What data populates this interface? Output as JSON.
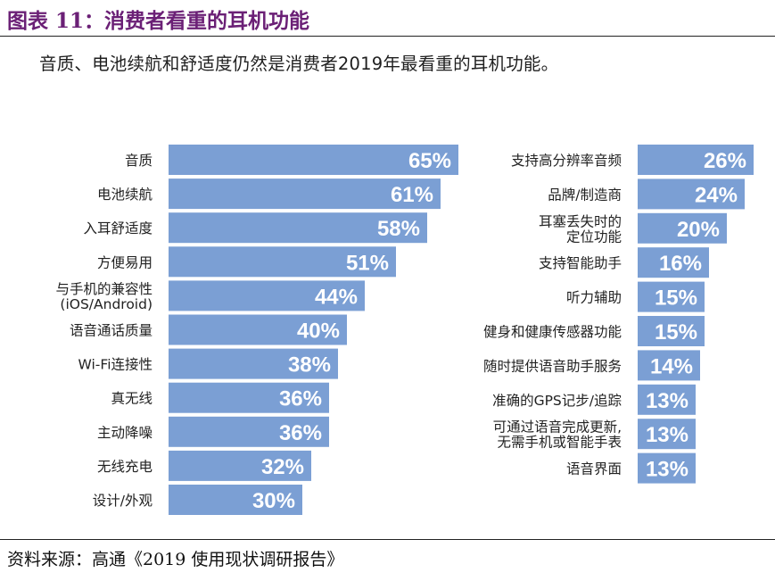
{
  "figure_title": "图表 11：消费者看重的耳机功能",
  "subtitle": "音质、电池续航和舒适度仍然是消费者2019年最看重的耳机功能。",
  "source": "资料来源：高通《2019 使用现状调研报告》",
  "colors": {
    "bar": "#7b9fd4",
    "bar_label": "#ffffff",
    "category_text": "#222222",
    "title": "#6b2076"
  },
  "chart_data": [
    {
      "type": "bar",
      "orientation": "horizontal",
      "unit": "%",
      "categories": [
        [
          "音质"
        ],
        [
          "电池续航"
        ],
        [
          "入耳舒适度"
        ],
        [
          "方便易用"
        ],
        [
          "与手机的兼容性",
          "(iOS/Android)"
        ],
        [
          "语音通话质量"
        ],
        [
          "Wi-Fi连接性"
        ],
        [
          "真无线"
        ],
        [
          "主动降噪"
        ],
        [
          "无线充电"
        ],
        [
          "设计/外观"
        ]
      ],
      "values": [
        65,
        61,
        58,
        51,
        44,
        40,
        38,
        36,
        36,
        32,
        30
      ],
      "labels": [
        "65%",
        "61%",
        "58%",
        "51%",
        "44%",
        "40%",
        "38%",
        "36%",
        "36%",
        "32%",
        "30%"
      ]
    },
    {
      "type": "bar",
      "orientation": "horizontal",
      "unit": "%",
      "categories": [
        [
          "支持高分辨率音频"
        ],
        [
          "品牌/制造商"
        ],
        [
          "耳塞丢失时的",
          "定位功能"
        ],
        [
          "支持智能助手"
        ],
        [
          "听力辅助"
        ],
        [
          "健身和健康传感器功能"
        ],
        [
          "随时提供语音助手服务"
        ],
        [
          "准确的GPS记步/追踪"
        ],
        [
          "可通过语音完成更新,",
          "无需手机或智能手表"
        ],
        [
          "语音界面"
        ]
      ],
      "values": [
        26,
        24,
        20,
        16,
        15,
        15,
        14,
        13,
        13,
        13
      ],
      "labels": [
        "26%",
        "24%",
        "20%",
        "16%",
        "15%",
        "15%",
        "14%",
        "13%",
        "13%",
        "13%"
      ]
    }
  ]
}
